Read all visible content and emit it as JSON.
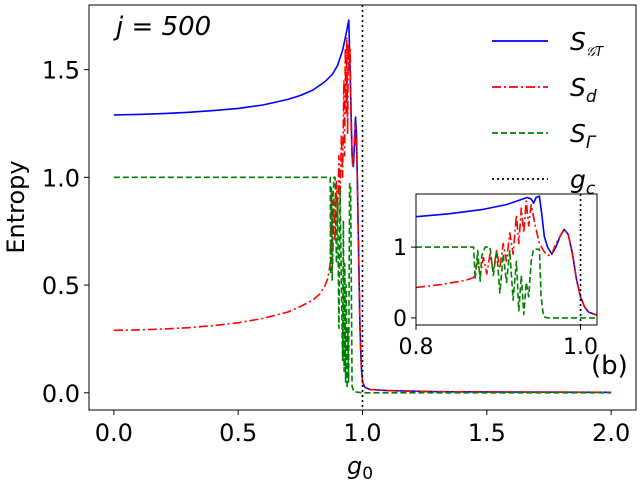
{
  "chart_data": {
    "type": "line",
    "main": {
      "xlabel": "g",
      "xlabel_sub": "0",
      "ylabel": "Entropy",
      "xlim": [
        -0.1,
        2.1
      ],
      "ylim": [
        -0.08,
        1.8
      ],
      "xticks": [
        0.0,
        0.5,
        1.0,
        1.5,
        2.0
      ],
      "xtick_labels": [
        "0.0",
        "0.5",
        "1.0",
        "1.5",
        "2.0"
      ],
      "yticks": [
        0.0,
        0.5,
        1.0,
        1.5
      ],
      "ytick_labels": [
        "0.0",
        "0.5",
        "1.0",
        "1.5"
      ],
      "vline_x": 1.0
    },
    "annotations": {
      "j_label": "j = 500",
      "panel_label": "(b)"
    },
    "legend": [
      {
        "key": "S_GT",
        "main": "S",
        "sub": "𝒢T",
        "color": "#0000ff",
        "dash": "solid"
      },
      {
        "key": "S_d",
        "main": "S",
        "sub": "d",
        "color": "#ff0000",
        "dash": "dashdot"
      },
      {
        "key": "S_Gamma",
        "main": "S",
        "sub": "Γ",
        "color": "#008000",
        "dash": "dashed"
      },
      {
        "key": "g_c",
        "main": "g",
        "sub": "c",
        "color": "#000000",
        "dash": "dotted"
      }
    ],
    "series": [
      {
        "name": "S_GT",
        "color": "#0000ff",
        "dash": "solid",
        "points": [
          [
            0.0,
            1.29
          ],
          [
            0.1,
            1.292
          ],
          [
            0.2,
            1.296
          ],
          [
            0.3,
            1.302
          ],
          [
            0.4,
            1.31
          ],
          [
            0.5,
            1.32
          ],
          [
            0.6,
            1.336
          ],
          [
            0.7,
            1.362
          ],
          [
            0.75,
            1.38
          ],
          [
            0.8,
            1.405
          ],
          [
            0.85,
            1.445
          ],
          [
            0.88,
            1.48
          ],
          [
            0.9,
            1.52
          ],
          [
            0.92,
            1.59
          ],
          [
            0.935,
            1.67
          ],
          [
            0.945,
            1.73
          ],
          [
            0.952,
            1.4
          ],
          [
            0.958,
            1.1
          ],
          [
            0.963,
            1.05
          ],
          [
            0.968,
            1.15
          ],
          [
            0.972,
            1.28
          ],
          [
            0.976,
            1.2
          ],
          [
            0.98,
            0.95
          ],
          [
            0.985,
            0.6
          ],
          [
            0.99,
            0.3
          ],
          [
            0.995,
            0.12
          ],
          [
            1.0,
            0.05
          ],
          [
            1.01,
            0.025
          ],
          [
            1.03,
            0.015
          ],
          [
            1.1,
            0.01
          ],
          [
            1.3,
            0.005
          ],
          [
            1.6,
            0.003
          ],
          [
            2.0,
            0.002
          ]
        ]
      },
      {
        "name": "S_d",
        "color": "#ff0000",
        "dash": "dashdot",
        "points": [
          [
            0.0,
            0.29
          ],
          [
            0.1,
            0.292
          ],
          [
            0.2,
            0.296
          ],
          [
            0.3,
            0.302
          ],
          [
            0.4,
            0.312
          ],
          [
            0.5,
            0.325
          ],
          [
            0.6,
            0.345
          ],
          [
            0.7,
            0.375
          ],
          [
            0.75,
            0.4
          ],
          [
            0.8,
            0.43
          ],
          [
            0.83,
            0.46
          ],
          [
            0.85,
            0.5
          ],
          [
            0.86,
            0.53
          ],
          [
            0.865,
            0.56
          ],
          [
            0.87,
            0.6
          ],
          [
            0.875,
            0.95
          ],
          [
            0.88,
            0.6
          ],
          [
            0.885,
            0.9
          ],
          [
            0.89,
            0.7
          ],
          [
            0.895,
            0.98
          ],
          [
            0.9,
            0.8
          ],
          [
            0.905,
            1.1
          ],
          [
            0.91,
            0.9
          ],
          [
            0.915,
            1.2
          ],
          [
            0.92,
            1.0
          ],
          [
            0.925,
            1.45
          ],
          [
            0.928,
            1.1
          ],
          [
            0.931,
            1.6
          ],
          [
            0.934,
            1.3
          ],
          [
            0.937,
            1.65
          ],
          [
            0.94,
            1.2
          ],
          [
            0.943,
            1.62
          ],
          [
            0.946,
            1.5
          ],
          [
            0.95,
            1.6
          ],
          [
            0.955,
            1.2
          ],
          [
            0.96,
            1.05
          ],
          [
            0.965,
            1.12
          ],
          [
            0.97,
            1.25
          ],
          [
            0.975,
            1.18
          ],
          [
            0.98,
            0.95
          ],
          [
            0.985,
            0.6
          ],
          [
            0.99,
            0.3
          ],
          [
            0.995,
            0.12
          ],
          [
            1.0,
            0.05
          ],
          [
            1.01,
            0.025
          ],
          [
            1.03,
            0.015
          ],
          [
            1.1,
            0.01
          ],
          [
            1.3,
            0.005
          ],
          [
            1.6,
            0.003
          ],
          [
            2.0,
            0.002
          ]
        ]
      },
      {
        "name": "S_Gamma",
        "color": "#008000",
        "dash": "dashed",
        "points": [
          [
            0.0,
            1.0
          ],
          [
            0.4,
            1.0
          ],
          [
            0.8,
            1.0
          ],
          [
            0.87,
            1.0
          ],
          [
            0.872,
            0.55
          ],
          [
            0.875,
            0.95
          ],
          [
            0.878,
            0.52
          ],
          [
            0.88,
            0.88
          ],
          [
            0.885,
            1.0
          ],
          [
            0.89,
            1.0
          ],
          [
            0.895,
            0.6
          ],
          [
            0.9,
            0.9
          ],
          [
            0.905,
            0.3
          ],
          [
            0.91,
            0.95
          ],
          [
            0.915,
            0.5
          ],
          [
            0.92,
            0.15
          ],
          [
            0.923,
            0.8
          ],
          [
            0.926,
            0.1
          ],
          [
            0.929,
            0.6
          ],
          [
            0.932,
            0.05
          ],
          [
            0.935,
            0.5
          ],
          [
            0.938,
            0.02
          ],
          [
            0.941,
            0.3
          ],
          [
            0.944,
            0.05
          ],
          [
            0.948,
            0.97
          ],
          [
            0.952,
            0.97
          ],
          [
            0.958,
            0.03
          ],
          [
            0.965,
            0.005
          ],
          [
            1.0,
            0.0
          ],
          [
            2.0,
            0.0
          ]
        ]
      }
    ],
    "inset": {
      "xlim": [
        0.8,
        1.02
      ],
      "ylim": [
        -0.1,
        1.75
      ],
      "xticks": [
        0.8,
        1.0
      ],
      "xtick_labels": [
        "0.8",
        "1.0"
      ],
      "yticks": [
        0,
        1
      ],
      "ytick_labels": [
        "0",
        "1"
      ],
      "vline_x": 1.0,
      "series": [
        {
          "name": "S_GT",
          "color": "#0000ff",
          "dash": "solid",
          "points": [
            [
              0.8,
              1.43
            ],
            [
              0.84,
              1.47
            ],
            [
              0.88,
              1.53
            ],
            [
              0.91,
              1.6
            ],
            [
              0.925,
              1.66
            ],
            [
              0.935,
              1.7
            ],
            [
              0.94,
              1.68
            ],
            [
              0.943,
              1.62
            ],
            [
              0.946,
              1.7
            ],
            [
              0.95,
              1.72
            ],
            [
              0.953,
              1.45
            ],
            [
              0.956,
              1.15
            ],
            [
              0.96,
              1.0
            ],
            [
              0.965,
              0.9
            ],
            [
              0.97,
              1.0
            ],
            [
              0.975,
              1.15
            ],
            [
              0.98,
              1.25
            ],
            [
              0.985,
              1.18
            ],
            [
              0.99,
              0.92
            ],
            [
              0.995,
              0.55
            ],
            [
              1.0,
              0.3
            ],
            [
              1.005,
              0.15
            ],
            [
              1.01,
              0.08
            ],
            [
              1.02,
              0.04
            ]
          ]
        },
        {
          "name": "S_d",
          "color": "#ff0000",
          "dash": "dashdot",
          "points": [
            [
              0.8,
              0.43
            ],
            [
              0.83,
              0.47
            ],
            [
              0.86,
              0.53
            ],
            [
              0.87,
              0.57
            ],
            [
              0.875,
              0.8
            ],
            [
              0.878,
              0.6
            ],
            [
              0.882,
              0.85
            ],
            [
              0.886,
              0.62
            ],
            [
              0.89,
              0.9
            ],
            [
              0.894,
              0.65
            ],
            [
              0.898,
              0.95
            ],
            [
              0.902,
              0.7
            ],
            [
              0.906,
              1.05
            ],
            [
              0.91,
              0.8
            ],
            [
              0.914,
              1.2
            ],
            [
              0.918,
              0.9
            ],
            [
              0.922,
              1.45
            ],
            [
              0.925,
              1.05
            ],
            [
              0.928,
              1.55
            ],
            [
              0.931,
              1.2
            ],
            [
              0.934,
              1.65
            ],
            [
              0.937,
              1.3
            ],
            [
              0.94,
              1.6
            ],
            [
              0.945,
              1.3
            ],
            [
              0.95,
              1.05
            ],
            [
              0.955,
              0.95
            ],
            [
              0.96,
              0.88
            ],
            [
              0.965,
              0.9
            ],
            [
              0.97,
              1.05
            ],
            [
              0.975,
              1.15
            ],
            [
              0.98,
              1.25
            ],
            [
              0.985,
              1.18
            ],
            [
              0.99,
              0.92
            ],
            [
              0.995,
              0.55
            ],
            [
              1.0,
              0.3
            ],
            [
              1.005,
              0.15
            ],
            [
              1.01,
              0.08
            ],
            [
              1.02,
              0.04
            ]
          ]
        },
        {
          "name": "S_Gamma",
          "color": "#008000",
          "dash": "dashed",
          "points": [
            [
              0.8,
              1.0
            ],
            [
              0.87,
              1.0
            ],
            [
              0.872,
              0.55
            ],
            [
              0.875,
              0.95
            ],
            [
              0.878,
              0.52
            ],
            [
              0.88,
              0.88
            ],
            [
              0.884,
              1.0
            ],
            [
              0.89,
              1.0
            ],
            [
              0.894,
              0.6
            ],
            [
              0.898,
              0.95
            ],
            [
              0.902,
              0.35
            ],
            [
              0.906,
              0.9
            ],
            [
              0.91,
              0.5
            ],
            [
              0.914,
              0.95
            ],
            [
              0.918,
              0.25
            ],
            [
              0.922,
              0.8
            ],
            [
              0.925,
              0.1
            ],
            [
              0.928,
              0.6
            ],
            [
              0.931,
              0.05
            ],
            [
              0.934,
              0.5
            ],
            [
              0.937,
              0.3
            ],
            [
              0.94,
              0.8
            ],
            [
              0.943,
              0.97
            ],
            [
              0.95,
              0.97
            ],
            [
              0.952,
              0.3
            ],
            [
              0.955,
              0.02
            ],
            [
              0.96,
              0.0
            ],
            [
              1.02,
              0.0
            ]
          ]
        }
      ]
    }
  }
}
